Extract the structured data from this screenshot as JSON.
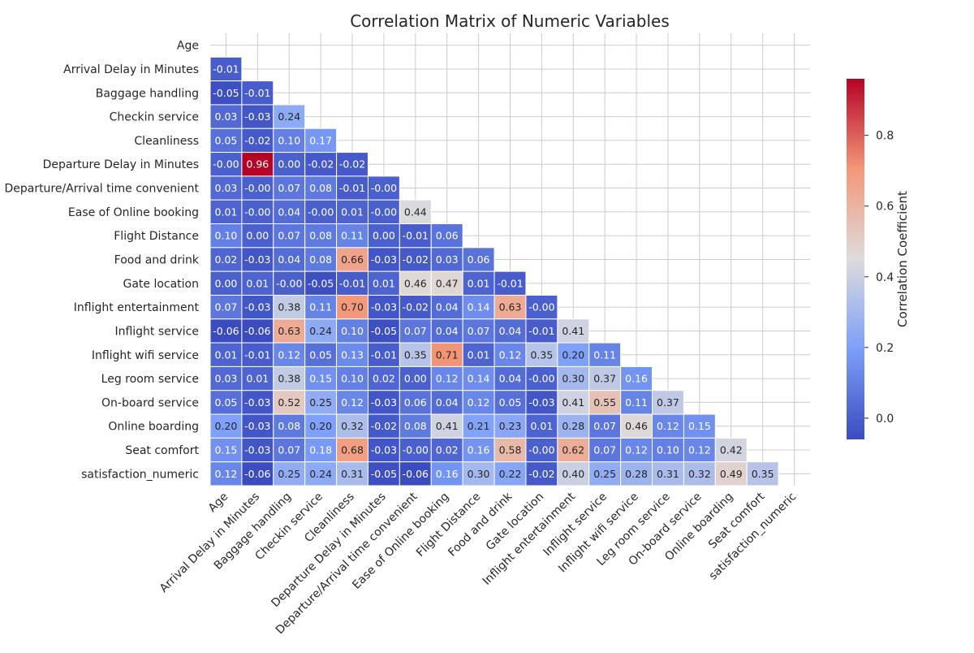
{
  "chart_data": {
    "type": "heatmap",
    "title": "Correlation Matrix of Numeric Variables",
    "xlabel": "",
    "ylabel": "",
    "mask": "upper-triangle-including-diagonal",
    "grid": true,
    "labels": [
      "Age",
      "Arrival Delay in Minutes",
      "Baggage handling",
      "Checkin service",
      "Cleanliness",
      "Departure Delay in Minutes",
      "Departure/Arrival time convenient",
      "Ease of Online booking",
      "Flight Distance",
      "Food and drink",
      "Gate location",
      "Inflight entertainment",
      "Inflight service",
      "Inflight wifi service",
      "Leg room service",
      "On-board service",
      "Online boarding",
      "Seat comfort",
      "satisfaction_numeric"
    ],
    "values": [
      [],
      [
        "-0.01"
      ],
      [
        "-0.05",
        "-0.01"
      ],
      [
        "0.03",
        "-0.03",
        "0.24"
      ],
      [
        "0.05",
        "-0.02",
        "0.10",
        "0.17"
      ],
      [
        "-0.00",
        "0.96",
        "0.00",
        "-0.02",
        "-0.02"
      ],
      [
        "0.03",
        "-0.00",
        "0.07",
        "0.08",
        "-0.01",
        "-0.00"
      ],
      [
        "0.01",
        "-0.00",
        "0.04",
        "-0.00",
        "0.01",
        "-0.00",
        "0.44"
      ],
      [
        "0.10",
        "0.00",
        "0.07",
        "0.08",
        "0.11",
        "0.00",
        "-0.01",
        "0.06"
      ],
      [
        "0.02",
        "-0.03",
        "0.04",
        "0.08",
        "0.66",
        "-0.03",
        "-0.02",
        "0.03",
        "0.06"
      ],
      [
        "0.00",
        "0.01",
        "-0.00",
        "-0.05",
        "-0.01",
        "0.01",
        "0.46",
        "0.47",
        "0.01",
        "-0.01"
      ],
      [
        "0.07",
        "-0.03",
        "0.38",
        "0.11",
        "0.70",
        "-0.03",
        "-0.02",
        "0.04",
        "0.14",
        "0.63",
        "-0.00"
      ],
      [
        "-0.06",
        "-0.06",
        "0.63",
        "0.24",
        "0.10",
        "-0.05",
        "0.07",
        "0.04",
        "0.07",
        "0.04",
        "-0.01",
        "0.41"
      ],
      [
        "0.01",
        "-0.01",
        "0.12",
        "0.05",
        "0.13",
        "-0.01",
        "0.35",
        "0.71",
        "0.01",
        "0.12",
        "0.35",
        "0.20",
        "0.11"
      ],
      [
        "0.03",
        "0.01",
        "0.38",
        "0.15",
        "0.10",
        "0.02",
        "0.00",
        "0.12",
        "0.14",
        "0.04",
        "-0.00",
        "0.30",
        "0.37",
        "0.16"
      ],
      [
        "0.05",
        "-0.03",
        "0.52",
        "0.25",
        "0.12",
        "-0.03",
        "0.06",
        "0.04",
        "0.12",
        "0.05",
        "-0.03",
        "0.41",
        "0.55",
        "0.11",
        "0.37"
      ],
      [
        "0.20",
        "-0.03",
        "0.08",
        "0.20",
        "0.32",
        "-0.02",
        "0.08",
        "0.41",
        "0.21",
        "0.23",
        "0.01",
        "0.28",
        "0.07",
        "0.46",
        "0.12",
        "0.15"
      ],
      [
        "0.15",
        "-0.03",
        "0.07",
        "0.18",
        "0.68",
        "-0.03",
        "-0.00",
        "0.02",
        "0.16",
        "0.58",
        "-0.00",
        "0.62",
        "0.07",
        "0.12",
        "0.10",
        "0.12",
        "0.42"
      ],
      [
        "0.12",
        "-0.06",
        "0.25",
        "0.24",
        "0.31",
        "-0.05",
        "-0.06",
        "0.16",
        "0.30",
        "0.22",
        "-0.02",
        "0.40",
        "0.25",
        "0.28",
        "0.31",
        "0.32",
        "0.49",
        "0.35"
      ]
    ],
    "colorbar": {
      "label": "Correlation Coefficient",
      "vmin": -0.06,
      "vmax": 0.96,
      "ticks": [
        "0.0",
        "0.2",
        "0.4",
        "0.6",
        "0.8"
      ],
      "colormap": "coolwarm",
      "low_color": "#3b4cc0",
      "mid_color": "#dddcdc",
      "high_color": "#b40426"
    }
  }
}
